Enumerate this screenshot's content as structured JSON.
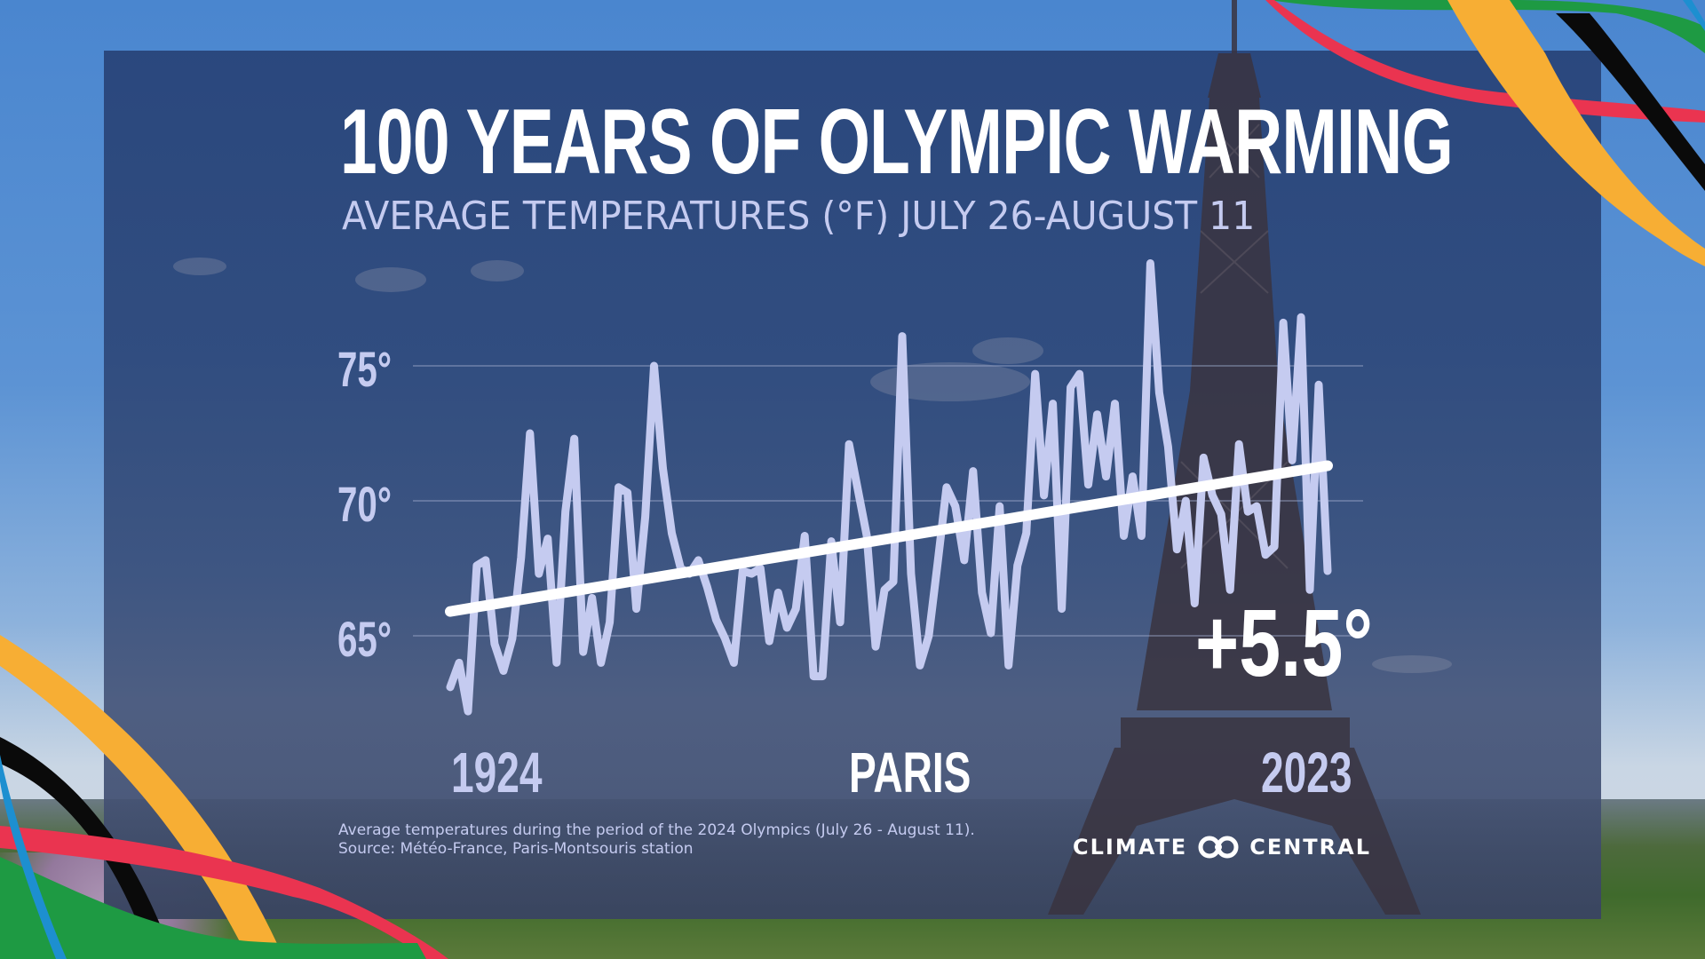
{
  "title": "100 YEARS OF OLYMPIC WARMING",
  "subtitle": "AVERAGE TEMPERATURES (°F) JULY 26-AUGUST 11",
  "axis": {
    "y_ticks": [
      "75°",
      "70°",
      "65°"
    ],
    "x_start_label": "1924",
    "x_center_label": "PARIS",
    "x_end_label": "2023"
  },
  "annotation": {
    "trend_change": "+5.5°"
  },
  "footnote": {
    "line1": "Average temperatures during the period of the 2024 Olympics (July 26 - August 11).",
    "line2": "Source: Météo-France, Paris-Montsouris station"
  },
  "logo": {
    "left_word": "CLIMATE",
    "right_word": "CENTRAL",
    "icon": "climate-central-rings-icon"
  },
  "colors": {
    "panel": "#2c477b",
    "line": "#c5cbf0",
    "trend": "#ffffff",
    "gridline": "#9aa6c8",
    "ribbon_yellow": "#f7ae34",
    "ribbon_black": "#0a0a0a",
    "ribbon_red": "#ea3450",
    "ribbon_green": "#1e9a43",
    "ribbon_blue": "#1d8fd0"
  },
  "chart_data": {
    "type": "line",
    "title": "100 YEARS OF OLYMPIC WARMING",
    "subtitle": "AVERAGE TEMPERATURES (°F) JULY 26-AUGUST 11",
    "xlabel": "",
    "ylabel": "Average temperature (°F)",
    "x_range": [
      1924,
      2023
    ],
    "ylim": [
      61.5,
      79
    ],
    "y_ticks": [
      65,
      70,
      75
    ],
    "grid": true,
    "legend": "none",
    "series": [
      {
        "name": "Paris-Montsouris average temperature, Jul 26 - Aug 11",
        "values": [
          63.1,
          64.0,
          62.2,
          67.6,
          67.8,
          64.7,
          63.7,
          64.9,
          67.9,
          72.5,
          67.3,
          68.6,
          64.0,
          69.6,
          72.3,
          64.4,
          66.4,
          64.0,
          65.5,
          70.5,
          70.3,
          66.0,
          69.4,
          75.0,
          71.2,
          68.8,
          67.5,
          67.3,
          67.8,
          66.8,
          65.6,
          64.9,
          64.0,
          67.4,
          67.3,
          67.5,
          64.8,
          66.6,
          65.3,
          66.0,
          68.7,
          63.5,
          63.5,
          68.5,
          65.5,
          72.1,
          70.4,
          68.7,
          64.6,
          66.7,
          67.0,
          76.1,
          67.3,
          63.9,
          65.0,
          67.7,
          70.5,
          69.8,
          67.8,
          71.1,
          66.6,
          65.1,
          69.8,
          63.9,
          67.6,
          68.8,
          74.7,
          70.2,
          73.6,
          66.0,
          74.2,
          74.7,
          70.6,
          73.2,
          70.9,
          73.6,
          68.7,
          70.9,
          68.7,
          78.8,
          74.0,
          72.0,
          68.2,
          70.0,
          66.2,
          71.6,
          70.2,
          69.5,
          66.7,
          72.1,
          69.6,
          69.8,
          68.0,
          68.3,
          76.6,
          71.5,
          76.8,
          66.7,
          74.3,
          67.4
        ]
      },
      {
        "name": "Linear trend",
        "x": [
          1924,
          2023
        ],
        "values": [
          65.9,
          71.3
        ]
      }
    ],
    "annotations": [
      "+5.5°",
      "PARIS",
      "1924",
      "2023"
    ]
  }
}
